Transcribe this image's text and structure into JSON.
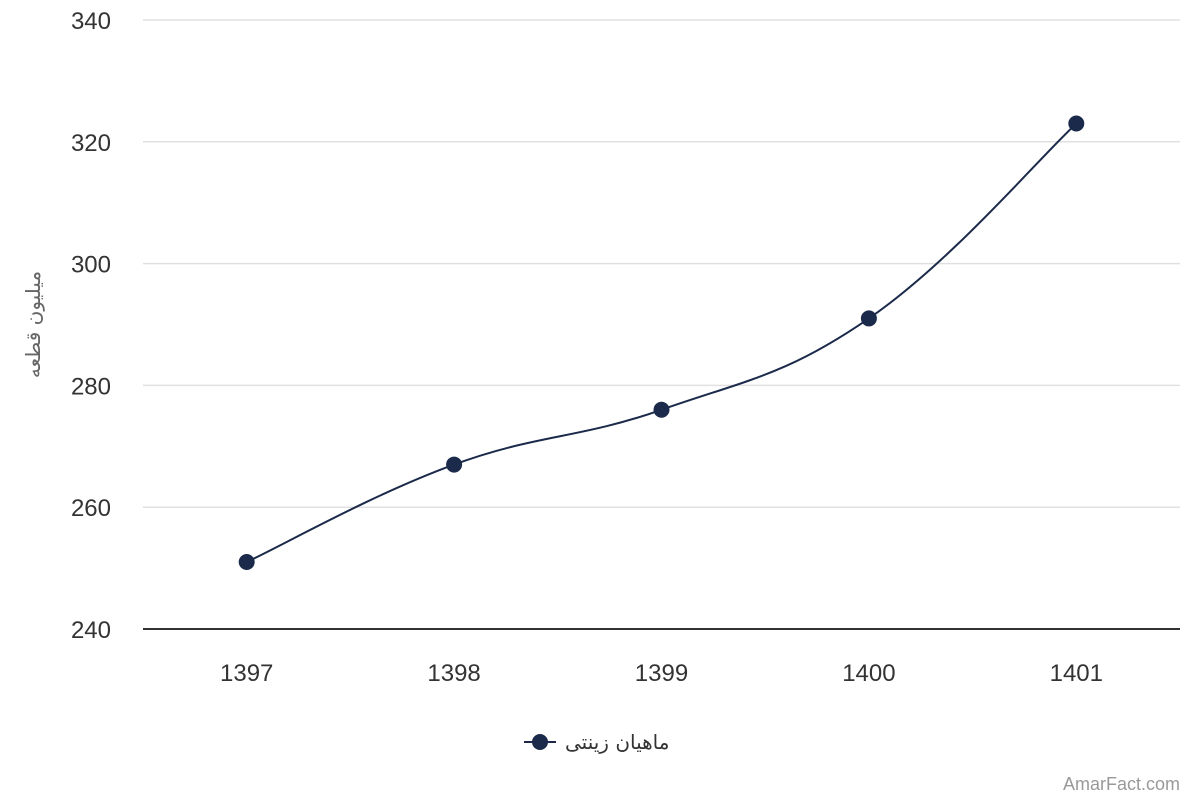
{
  "chart_data": {
    "type": "line",
    "x": [
      "1397",
      "1398",
      "1399",
      "1400",
      "1401"
    ],
    "series": [
      {
        "name": "ماهیان زینتی",
        "values": [
          251,
          267,
          276,
          291,
          323
        ],
        "color": "#1b2a4a"
      }
    ],
    "ylabel": "میلیون قطعه",
    "xlabel": "",
    "ylim": [
      240,
      340
    ],
    "yticks": [
      240,
      260,
      280,
      300,
      320,
      340
    ],
    "grid": true,
    "legend": "bottom-center",
    "smooth": true
  },
  "credit": "AmarFact.com",
  "colors": {
    "grid": "#e0e0e0",
    "axis": "#333333",
    "series": "#1b2a4a"
  }
}
